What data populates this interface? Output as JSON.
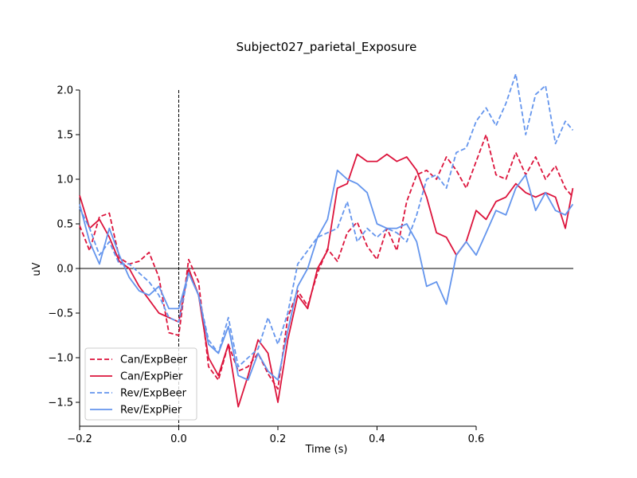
{
  "chart_data": {
    "type": "line",
    "title": "Subject027_parietal_Exposure",
    "xlabel": "Time (s)",
    "ylabel": "uV",
    "xlim": [
      -0.2,
      0.8
    ],
    "ylim": [
      -1.75,
      2.0
    ],
    "xticks": [
      -0.2,
      0.0,
      0.2,
      0.4,
      0.6
    ],
    "xtick_labels": [
      "−0.2",
      "0.0",
      "0.2",
      "0.4",
      "0.6"
    ],
    "yticks": [
      2.0,
      1.5,
      1.0,
      0.5,
      0.0,
      -0.5,
      -1.0,
      -1.5
    ],
    "ytick_labels": [
      "2.0",
      "1.5",
      "1.0",
      "0.5",
      "0.0",
      "−0.5",
      "−1.0",
      "−1.5"
    ],
    "event_marker_x": 0.0,
    "zero_line": true,
    "grid": false,
    "legend_position": "lower-left",
    "series": [
      {
        "name": "Can/ExpBeer",
        "color": "#dc143c",
        "dash": "dashed",
        "x": [
          -0.2,
          -0.18,
          -0.16,
          -0.14,
          -0.12,
          -0.1,
          -0.08,
          -0.06,
          -0.04,
          -0.02,
          0.0,
          0.02,
          0.04,
          0.06,
          0.08,
          0.1,
          0.12,
          0.14,
          0.16,
          0.18,
          0.2,
          0.22,
          0.24,
          0.26,
          0.28,
          0.3,
          0.32,
          0.34,
          0.36,
          0.38,
          0.4,
          0.42,
          0.44,
          0.46,
          0.48,
          0.5,
          0.52,
          0.54,
          0.56,
          0.58,
          0.6,
          0.62,
          0.64,
          0.66,
          0.68,
          0.7,
          0.72,
          0.74,
          0.76,
          0.78,
          0.795
        ],
        "y": [
          0.48,
          0.2,
          0.58,
          0.62,
          0.12,
          0.05,
          0.08,
          0.18,
          -0.1,
          -0.72,
          -0.75,
          0.1,
          -0.15,
          -1.1,
          -1.25,
          -0.85,
          -1.15,
          -1.1,
          -0.95,
          -1.18,
          -1.35,
          -0.55,
          -0.25,
          -0.42,
          -0.05,
          0.22,
          0.08,
          0.4,
          0.52,
          0.25,
          0.1,
          0.45,
          0.2,
          0.75,
          1.05,
          1.1,
          1.0,
          1.25,
          1.1,
          0.9,
          1.2,
          1.5,
          1.05,
          1.0,
          1.3,
          1.05,
          1.25,
          1.0,
          1.15,
          0.9,
          0.8
        ]
      },
      {
        "name": "Can/ExpPier",
        "color": "#dc143c",
        "dash": "solid",
        "x": [
          -0.2,
          -0.18,
          -0.16,
          -0.14,
          -0.12,
          -0.1,
          -0.08,
          -0.06,
          -0.04,
          -0.02,
          0.0,
          0.02,
          0.04,
          0.06,
          0.08,
          0.1,
          0.12,
          0.14,
          0.16,
          0.18,
          0.2,
          0.22,
          0.24,
          0.26,
          0.28,
          0.3,
          0.32,
          0.34,
          0.36,
          0.38,
          0.4,
          0.42,
          0.44,
          0.46,
          0.48,
          0.5,
          0.52,
          0.54,
          0.56,
          0.58,
          0.6,
          0.62,
          0.64,
          0.66,
          0.68,
          0.7,
          0.72,
          0.74,
          0.76,
          0.78,
          0.795
        ],
        "y": [
          0.82,
          0.45,
          0.55,
          0.35,
          0.08,
          0.0,
          -0.2,
          -0.35,
          -0.5,
          -0.55,
          -0.6,
          0.0,
          -0.3,
          -1.0,
          -1.2,
          -0.85,
          -1.55,
          -1.2,
          -0.8,
          -0.95,
          -1.5,
          -0.8,
          -0.3,
          -0.45,
          0.0,
          0.2,
          0.9,
          0.95,
          1.28,
          1.2,
          1.2,
          1.28,
          1.2,
          1.25,
          1.1,
          0.8,
          0.4,
          0.35,
          0.15,
          0.3,
          0.65,
          0.55,
          0.75,
          0.8,
          0.95,
          0.85,
          0.8,
          0.85,
          0.8,
          0.45,
          0.9
        ]
      },
      {
        "name": "Rev/ExpBeer",
        "color": "#6495ed",
        "dash": "dashed",
        "x": [
          -0.2,
          -0.18,
          -0.16,
          -0.14,
          -0.12,
          -0.1,
          -0.08,
          -0.06,
          -0.04,
          -0.02,
          0.0,
          0.02,
          0.04,
          0.06,
          0.08,
          0.1,
          0.12,
          0.14,
          0.16,
          0.18,
          0.2,
          0.22,
          0.24,
          0.26,
          0.28,
          0.3,
          0.32,
          0.34,
          0.36,
          0.38,
          0.4,
          0.42,
          0.44,
          0.46,
          0.48,
          0.5,
          0.52,
          0.54,
          0.56,
          0.58,
          0.6,
          0.62,
          0.64,
          0.66,
          0.68,
          0.7,
          0.72,
          0.74,
          0.76,
          0.78,
          0.795
        ],
        "y": [
          0.68,
          0.45,
          0.15,
          0.3,
          0.05,
          0.05,
          -0.05,
          -0.15,
          -0.3,
          -0.55,
          -0.6,
          -0.05,
          -0.3,
          -0.8,
          -0.95,
          -0.55,
          -1.1,
          -1.0,
          -0.9,
          -0.55,
          -0.85,
          -0.5,
          0.05,
          0.2,
          0.35,
          0.4,
          0.45,
          0.75,
          0.3,
          0.45,
          0.35,
          0.45,
          0.4,
          0.3,
          0.6,
          1.0,
          1.05,
          0.9,
          1.3,
          1.35,
          1.65,
          1.8,
          1.6,
          1.85,
          2.18,
          1.5,
          1.95,
          2.05,
          1.4,
          1.65,
          1.55
        ]
      },
      {
        "name": "Rev/ExpPier",
        "color": "#6495ed",
        "dash": "solid",
        "x": [
          -0.2,
          -0.18,
          -0.16,
          -0.14,
          -0.12,
          -0.1,
          -0.08,
          -0.06,
          -0.04,
          -0.02,
          0.0,
          0.02,
          0.04,
          0.06,
          0.08,
          0.1,
          0.12,
          0.14,
          0.16,
          0.18,
          0.2,
          0.22,
          0.24,
          0.26,
          0.28,
          0.3,
          0.32,
          0.34,
          0.36,
          0.38,
          0.4,
          0.42,
          0.44,
          0.46,
          0.48,
          0.5,
          0.52,
          0.54,
          0.56,
          0.58,
          0.6,
          0.62,
          0.64,
          0.66,
          0.68,
          0.7,
          0.72,
          0.74,
          0.76,
          0.78,
          0.795
        ],
        "y": [
          0.72,
          0.3,
          0.05,
          0.45,
          0.15,
          -0.1,
          -0.25,
          -0.3,
          -0.2,
          -0.45,
          -0.45,
          -0.05,
          -0.3,
          -0.85,
          -0.95,
          -0.65,
          -1.2,
          -1.25,
          -0.95,
          -1.15,
          -1.25,
          -0.7,
          -0.2,
          0.0,
          0.35,
          0.55,
          1.1,
          1.0,
          0.95,
          0.85,
          0.5,
          0.45,
          0.45,
          0.5,
          0.3,
          -0.2,
          -0.15,
          -0.4,
          0.15,
          0.3,
          0.15,
          0.4,
          0.65,
          0.6,
          0.9,
          1.05,
          0.65,
          0.85,
          0.65,
          0.6,
          0.72
        ]
      }
    ]
  }
}
